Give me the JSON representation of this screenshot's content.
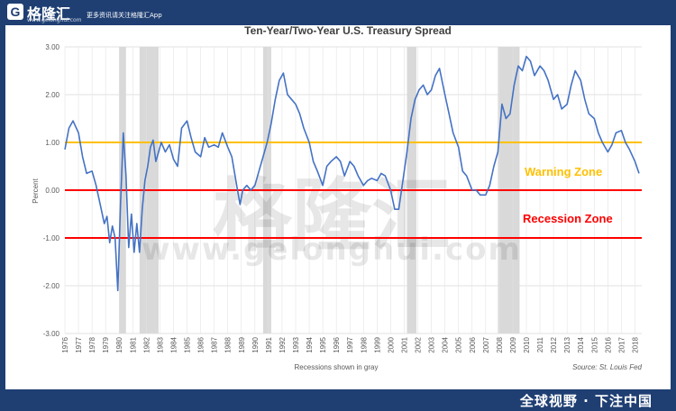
{
  "brand": {
    "logo_letter": "G",
    "name": "格隆汇",
    "url": "www.gelonghui.com",
    "tagline": "更多资讯请关注格隆汇App",
    "watermark_cn": "格隆汇",
    "watermark_url": "www.gelonghui.com",
    "footer_slogan": "全球视野 · 下注中国",
    "frame_color": "#1f3f73"
  },
  "chart_data": {
    "type": "line",
    "title": "Ten-Year/Two-Year U.S. Treasury Spread",
    "ylabel": "Percent",
    "xlabel": "Recessions shown in gray",
    "source": "Source: St. Louis Fed",
    "ylim": [
      -3.0,
      3.0
    ],
    "xlim": [
      1976.0,
      2018.5
    ],
    "y_ticks": [
      3.0,
      2.0,
      1.0,
      0.0,
      -1.0,
      -2.0,
      -3.0
    ],
    "y_tick_labels": [
      "3.00",
      "2.00",
      "1.00",
      "0.00",
      "-1.00",
      "-2.00",
      "-3.00"
    ],
    "x_tick_labels": [
      "1976",
      "1977",
      "1978",
      "1979",
      "1980",
      "1981",
      "1982",
      "1983",
      "1984",
      "1985",
      "1986",
      "1987",
      "1988",
      "1989",
      "1990",
      "1991",
      "1992",
      "1993",
      "1994",
      "1995",
      "1996",
      "1997",
      "1998",
      "1999",
      "2000",
      "2001",
      "2002",
      "2003",
      "2004",
      "2005",
      "2006",
      "2007",
      "2008",
      "2009",
      "2010",
      "2011",
      "2012",
      "2013",
      "2014",
      "2015",
      "2016",
      "2017",
      "2018"
    ],
    "grid": true,
    "recessions": [
      [
        1980.0,
        1980.5
      ],
      [
        1981.5,
        1982.9
      ],
      [
        1990.6,
        1991.2
      ],
      [
        2001.2,
        2001.9
      ],
      [
        2007.9,
        2009.5
      ]
    ],
    "recession_color": "#d9d9d9",
    "series": [
      {
        "color": "#4472c4",
        "x": [
          1976.0,
          1976.3,
          1976.6,
          1977.0,
          1977.3,
          1977.6,
          1978.0,
          1978.3,
          1978.6,
          1978.9,
          1979.1,
          1979.3,
          1979.5,
          1979.7,
          1979.9,
          1980.1,
          1980.3,
          1980.5,
          1980.7,
          1980.9,
          1981.1,
          1981.3,
          1981.5,
          1981.7,
          1981.9,
          1982.1,
          1982.3,
          1982.5,
          1982.7,
          1982.9,
          1983.1,
          1983.4,
          1983.7,
          1984.0,
          1984.3,
          1984.6,
          1985.0,
          1985.3,
          1985.6,
          1986.0,
          1986.3,
          1986.6,
          1987.0,
          1987.3,
          1987.6,
          1988.0,
          1988.3,
          1988.6,
          1988.9,
          1989.1,
          1989.4,
          1989.7,
          1990.0,
          1990.3,
          1990.6,
          1990.9,
          1991.2,
          1991.5,
          1991.8,
          1992.1,
          1992.4,
          1992.7,
          1993.0,
          1993.3,
          1993.6,
          1994.0,
          1994.3,
          1994.6,
          1995.0,
          1995.3,
          1995.6,
          1996.0,
          1996.3,
          1996.6,
          1997.0,
          1997.3,
          1997.6,
          1998.0,
          1998.3,
          1998.6,
          1999.0,
          1999.3,
          1999.6,
          2000.0,
          2000.3,
          2000.6,
          2000.9,
          2001.2,
          2001.5,
          2001.8,
          2002.1,
          2002.4,
          2002.7,
          2003.0,
          2003.3,
          2003.6,
          2004.0,
          2004.3,
          2004.6,
          2005.0,
          2005.3,
          2005.6,
          2006.0,
          2006.3,
          2006.6,
          2007.0,
          2007.3,
          2007.6,
          2007.9,
          2008.2,
          2008.5,
          2008.8,
          2009.1,
          2009.4,
          2009.7,
          2010.0,
          2010.3,
          2010.6,
          2011.0,
          2011.3,
          2011.6,
          2012.0,
          2012.3,
          2012.6,
          2013.0,
          2013.3,
          2013.6,
          2014.0,
          2014.3,
          2014.6,
          2015.0,
          2015.3,
          2015.6,
          2016.0,
          2016.3,
          2016.6,
          2017.0,
          2017.3,
          2017.6,
          2018.0,
          2018.3
        ],
        "y": [
          0.85,
          1.3,
          1.45,
          1.2,
          0.7,
          0.35,
          0.4,
          0.1,
          -0.3,
          -0.7,
          -0.55,
          -1.1,
          -0.75,
          -1.0,
          -2.1,
          -0.3,
          1.2,
          0.3,
          -1.2,
          -0.5,
          -1.3,
          -0.7,
          -1.3,
          -0.4,
          0.2,
          0.5,
          0.9,
          1.05,
          0.6,
          0.8,
          1.0,
          0.8,
          0.95,
          0.65,
          0.5,
          1.3,
          1.45,
          1.1,
          0.8,
          0.7,
          1.1,
          0.9,
          0.95,
          0.9,
          1.2,
          0.9,
          0.7,
          0.2,
          -0.3,
          0.0,
          0.1,
          0.0,
          0.1,
          0.4,
          0.7,
          1.0,
          1.4,
          1.9,
          2.3,
          2.45,
          2.0,
          1.9,
          1.8,
          1.6,
          1.3,
          1.0,
          0.6,
          0.4,
          0.1,
          0.5,
          0.6,
          0.7,
          0.6,
          0.3,
          0.6,
          0.5,
          0.3,
          0.1,
          0.2,
          0.25,
          0.2,
          0.35,
          0.3,
          0.0,
          -0.4,
          -0.4,
          0.2,
          0.8,
          1.5,
          1.9,
          2.1,
          2.2,
          2.0,
          2.1,
          2.4,
          2.55,
          2.0,
          1.6,
          1.2,
          0.9,
          0.4,
          0.3,
          0.0,
          0.0,
          -0.1,
          -0.1,
          0.1,
          0.5,
          0.8,
          1.8,
          1.5,
          1.6,
          2.2,
          2.6,
          2.5,
          2.8,
          2.7,
          2.4,
          2.6,
          2.5,
          2.3,
          1.9,
          2.0,
          1.7,
          1.8,
          2.2,
          2.5,
          2.3,
          1.9,
          1.6,
          1.5,
          1.2,
          1.0,
          0.8,
          0.95,
          1.2,
          1.25,
          1.0,
          0.85,
          0.6,
          0.35
        ]
      }
    ],
    "annotations": [
      {
        "text": "Warning Zone",
        "y": 1.0,
        "color": "#ffc000"
      },
      {
        "text": "Recession Zone",
        "y": 0.0,
        "color": "#ff0000"
      }
    ],
    "reference_lines": [
      {
        "y": 1.0,
        "color": "#ffc000"
      },
      {
        "y": 0.0,
        "color": "#ff0000"
      },
      {
        "y": -1.0,
        "color": "#ff0000"
      }
    ]
  }
}
